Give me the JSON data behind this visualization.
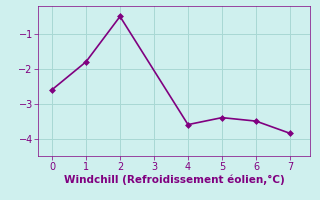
{
  "x": [
    0,
    1,
    2,
    4,
    5,
    6,
    7
  ],
  "y": [
    -2.6,
    -1.8,
    -0.5,
    -3.6,
    -3.4,
    -3.5,
    -3.85
  ],
  "line_color": "#800080",
  "marker": "D",
  "marker_size": 3,
  "background_color": "#cff0ee",
  "grid_color": "#a8d8d4",
  "xlabel": "Windchill (Refroidissement éolien,°C)",
  "xlabel_color": "#800080",
  "xlabel_fontsize": 7.5,
  "xticks": [
    0,
    1,
    2,
    3,
    4,
    5,
    6,
    7
  ],
  "yticks": [
    -4,
    -3,
    -2,
    -1
  ],
  "xlim": [
    -0.4,
    7.6
  ],
  "ylim": [
    -4.5,
    -0.2
  ],
  "tick_color": "#800080",
  "tick_fontsize": 7,
  "linewidth": 1.2
}
